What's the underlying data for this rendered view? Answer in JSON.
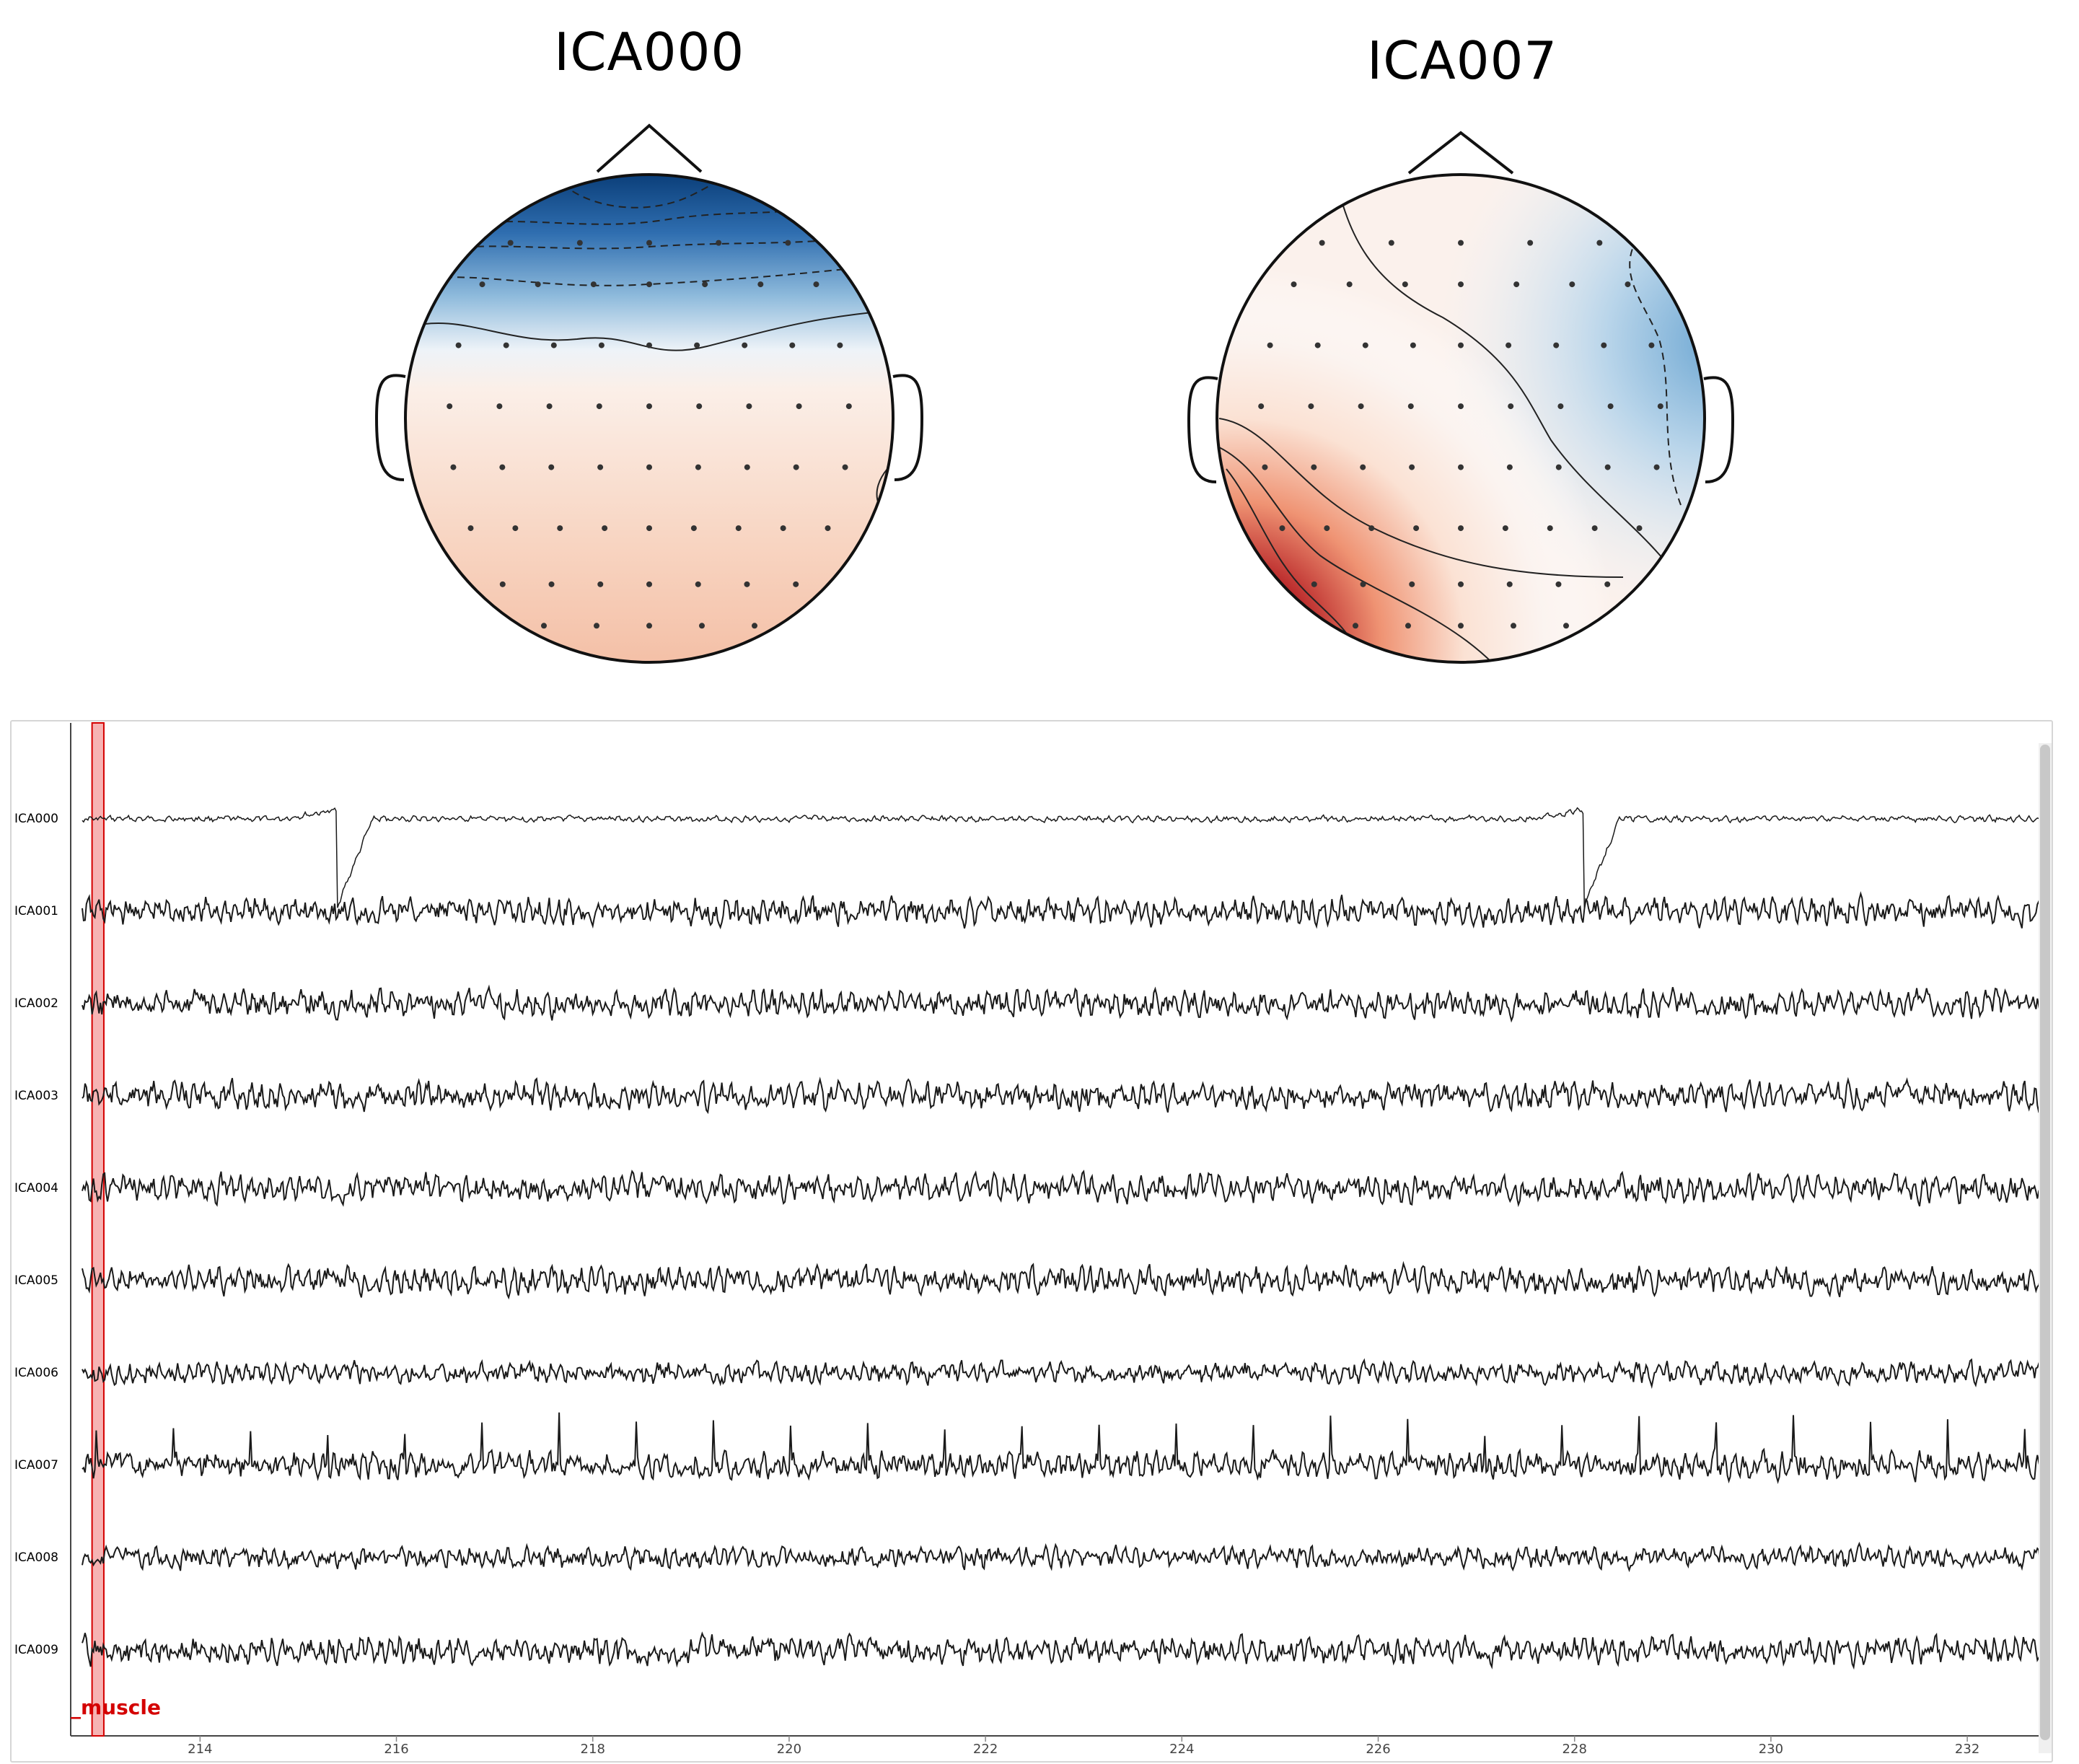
{
  "topomaps": [
    {
      "title": "ICA000",
      "pattern": "frontal-negative"
    },
    {
      "title": "ICA007",
      "pattern": "left-posterior-positive"
    }
  ],
  "colors": {
    "negative": "#08306b",
    "positive": "#67000d",
    "trace": "#1a1a1a",
    "annotation": "#d40000",
    "annotation_fill": "#f4a6a6"
  },
  "browser": {
    "channels": [
      "ICA000",
      "ICA001",
      "ICA002",
      "ICA003",
      "ICA004",
      "ICA005",
      "ICA006",
      "ICA007",
      "ICA008",
      "ICA009"
    ],
    "time_ticks": [
      "214",
      "216",
      "218",
      "220",
      "222",
      "224",
      "226",
      "228",
      "230",
      "232"
    ],
    "xlim": [
      212.8,
      232.8
    ],
    "annotation": {
      "label": "_muscle",
      "onset": 212.9,
      "duration": 0.12
    }
  }
}
